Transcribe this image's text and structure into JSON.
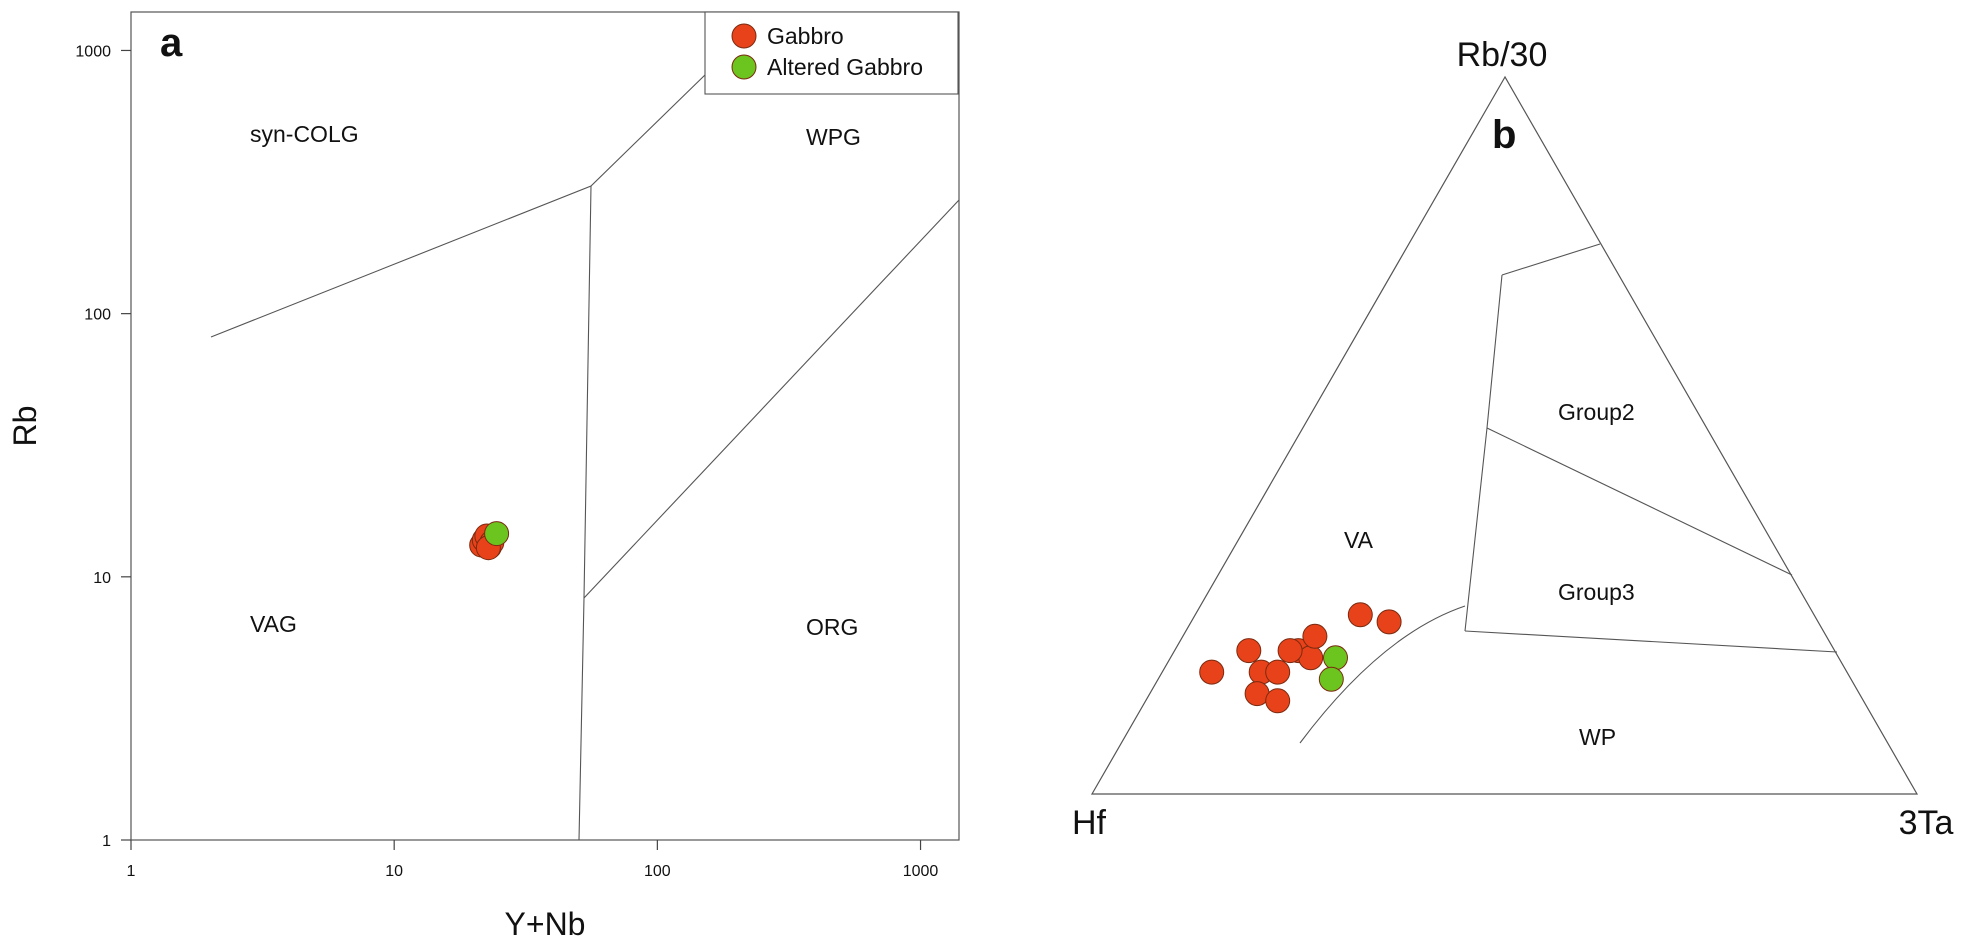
{
  "colors": {
    "gabbro": "#e8421a",
    "altered_gabbro": "#6cc41e",
    "lines": "#555555"
  },
  "chart_data": [
    {
      "type": "scatter",
      "panel_label": "a",
      "xlabel": "Y+Nb",
      "ylabel": "Rb",
      "xscale": "log",
      "yscale": "log",
      "xlim": [
        1,
        1400
      ],
      "ylim": [
        1,
        1400
      ],
      "x_ticks": [
        "1",
        "10",
        "100",
        "1000"
      ],
      "y_ticks": [
        "1",
        "10",
        "100",
        "1000"
      ],
      "legend": {
        "position": "top-right",
        "entries": [
          "Gabbro",
          "Altered Gabbro"
        ]
      },
      "regions": [
        "syn-COLG",
        "WPG",
        "VAG",
        "ORG"
      ],
      "series": [
        {
          "name": "Gabbro",
          "points": [
            [
              21.5,
              13.2
            ],
            [
              22,
              13.8
            ],
            [
              22.5,
              14.3
            ],
            [
              23,
              13.0
            ],
            [
              23.5,
              13.5
            ],
            [
              22.8,
              12.9
            ]
          ]
        },
        {
          "name": "Altered Gabbro",
          "points": [
            [
              24.5,
              14.6
            ]
          ]
        }
      ]
    },
    {
      "type": "scatter",
      "subtype": "ternary",
      "panel_label": "b",
      "vertices": {
        "top": "Rb/30",
        "left": "Hf",
        "right": "3Ta"
      },
      "regions": [
        "VA",
        "Group2",
        "Group3",
        "WP"
      ],
      "series": [
        {
          "name": "Gabbro",
          "points": [
            {
              "hf": 0.77,
              "ta3": 0.06,
              "rb30": 0.17
            },
            {
              "hf": 0.71,
              "ta3": 0.09,
              "rb30": 0.2
            },
            {
              "hf": 0.71,
              "ta3": 0.12,
              "rb30": 0.17
            },
            {
              "hf": 0.69,
              "ta3": 0.14,
              "rb30": 0.17
            },
            {
              "hf": 0.73,
              "ta3": 0.13,
              "rb30": 0.14
            },
            {
              "hf": 0.71,
              "ta3": 0.16,
              "rb30": 0.13
            },
            {
              "hf": 0.65,
              "ta3": 0.15,
              "rb30": 0.2
            },
            {
              "hf": 0.64,
              "ta3": 0.17,
              "rb30": 0.19
            },
            {
              "hf": 0.66,
              "ta3": 0.14,
              "rb30": 0.2
            },
            {
              "hf": 0.62,
              "ta3": 0.16,
              "rb30": 0.22
            },
            {
              "hf": 0.55,
              "ta3": 0.2,
              "rb30": 0.25
            },
            {
              "hf": 0.52,
              "ta3": 0.24,
              "rb30": 0.24
            }
          ]
        },
        {
          "name": "Altered Gabbro",
          "points": [
            {
              "hf": 0.61,
              "ta3": 0.2,
              "rb30": 0.19
            },
            {
              "hf": 0.63,
              "ta3": 0.21,
              "rb30": 0.16
            }
          ]
        }
      ]
    }
  ]
}
